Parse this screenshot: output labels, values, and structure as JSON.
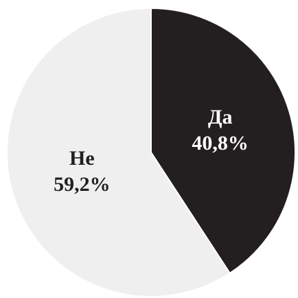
{
  "chart_data": {
    "type": "pie",
    "categories": [
      "Да",
      "Не"
    ],
    "values": [
      40.8,
      59.2
    ],
    "value_labels": [
      "40,8%",
      "59,2%"
    ],
    "colors": [
      "#231f20",
      "#efefef"
    ]
  }
}
